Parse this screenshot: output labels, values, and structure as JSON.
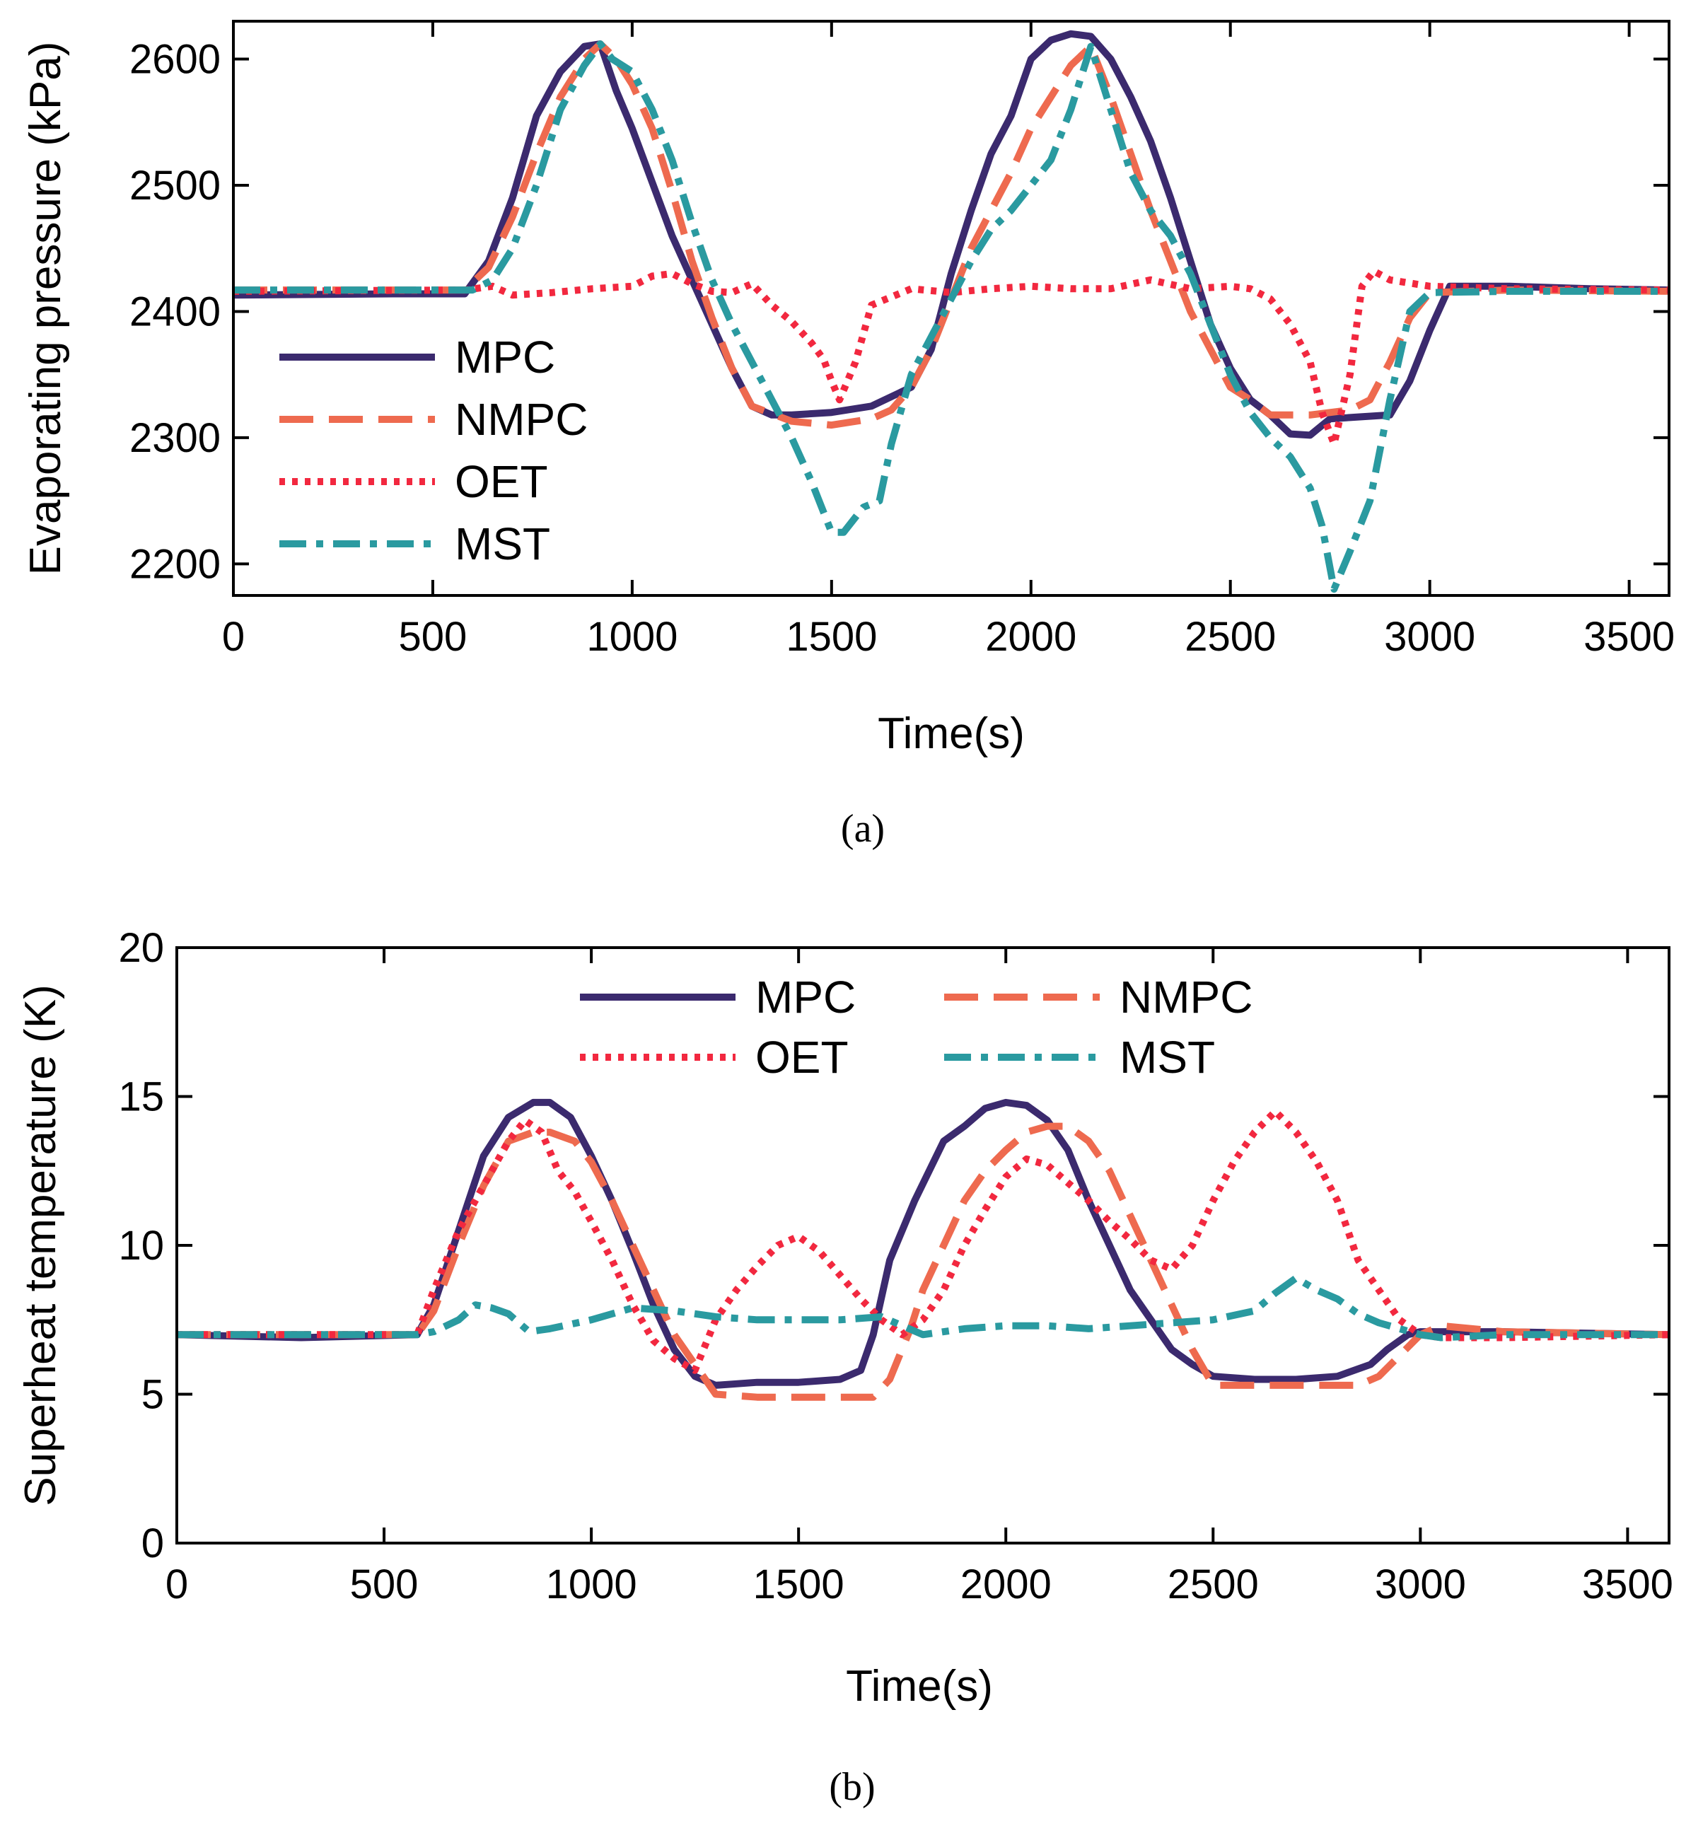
{
  "colors": {
    "MPC": "#3b2a6e",
    "NMPC": "#ee6a4f",
    "OET": "#f2283f",
    "MST": "#2a9aa0",
    "axis": "#000000",
    "background": "#ffffff"
  },
  "chart_data": [
    {
      "type": "line",
      "panel_label": "(a)",
      "xlabel": "Time(s)",
      "ylabel": "Evaporating pressure (kPa)",
      "xlim": [
        0,
        3600
      ],
      "ylim": [
        2175,
        2630
      ],
      "xticks": [
        0,
        500,
        1000,
        1500,
        2000,
        2500,
        3000,
        3500
      ],
      "yticks": [
        2200,
        2300,
        2400,
        2500,
        2600
      ],
      "grid": false,
      "legend_placement": "left-center",
      "legend_columns": 1,
      "series": [
        {
          "name": "MPC",
          "style": "solid",
          "color_key": "MPC",
          "x": [
            0,
            400,
            580,
            640,
            700,
            760,
            820,
            880,
            920,
            960,
            1000,
            1100,
            1200,
            1250,
            1300,
            1350,
            1400,
            1500,
            1600,
            1700,
            1750,
            1800,
            1850,
            1900,
            1950,
            2000,
            2050,
            2100,
            2150,
            2200,
            2250,
            2300,
            2350,
            2400,
            2450,
            2500,
            2550,
            2600,
            2650,
            2700,
            2750,
            2800,
            2900,
            2950,
            3000,
            3050,
            3200,
            3400,
            3600
          ],
          "y": [
            2413,
            2414,
            2414,
            2440,
            2490,
            2555,
            2590,
            2610,
            2612,
            2575,
            2545,
            2460,
            2390,
            2355,
            2325,
            2318,
            2318,
            2320,
            2325,
            2340,
            2370,
            2430,
            2480,
            2525,
            2555,
            2600,
            2615,
            2620,
            2618,
            2600,
            2570,
            2535,
            2490,
            2440,
            2390,
            2355,
            2330,
            2318,
            2303,
            2302,
            2315,
            2316,
            2318,
            2345,
            2385,
            2420,
            2420,
            2418,
            2417
          ]
        },
        {
          "name": "NMPC",
          "style": "dashed",
          "color_key": "NMPC",
          "x": [
            0,
            580,
            640,
            700,
            760,
            820,
            880,
            920,
            960,
            1000,
            1050,
            1100,
            1150,
            1200,
            1250,
            1300,
            1400,
            1500,
            1600,
            1650,
            1700,
            1750,
            1800,
            1850,
            1900,
            1950,
            2000,
            2050,
            2100,
            2150,
            2200,
            2250,
            2300,
            2350,
            2400,
            2450,
            2500,
            2550,
            2600,
            2700,
            2800,
            2850,
            2900,
            2950,
            3000,
            3200,
            3600
          ],
          "y": [
            2417,
            2417,
            2435,
            2475,
            2525,
            2570,
            2600,
            2612,
            2600,
            2580,
            2545,
            2495,
            2440,
            2395,
            2355,
            2325,
            2313,
            2310,
            2315,
            2322,
            2340,
            2370,
            2410,
            2450,
            2480,
            2510,
            2545,
            2570,
            2595,
            2610,
            2570,
            2525,
            2480,
            2440,
            2400,
            2370,
            2340,
            2330,
            2318,
            2318,
            2322,
            2330,
            2360,
            2395,
            2415,
            2417,
            2416
          ]
        },
        {
          "name": "OET",
          "style": "dotted",
          "color_key": "OET",
          "x": [
            0,
            580,
            650,
            700,
            800,
            900,
            1000,
            1050,
            1100,
            1150,
            1200,
            1250,
            1300,
            1350,
            1400,
            1450,
            1480,
            1500,
            1520,
            1560,
            1600,
            1700,
            1800,
            1900,
            2000,
            2100,
            2200,
            2300,
            2400,
            2500,
            2550,
            2600,
            2650,
            2700,
            2730,
            2760,
            2800,
            2830,
            2860,
            2900,
            3000,
            3200,
            3600
          ],
          "y": [
            2416,
            2417,
            2420,
            2413,
            2415,
            2418,
            2420,
            2428,
            2430,
            2422,
            2416,
            2415,
            2422,
            2405,
            2392,
            2375,
            2362,
            2345,
            2330,
            2360,
            2405,
            2418,
            2415,
            2418,
            2420,
            2418,
            2418,
            2425,
            2418,
            2420,
            2418,
            2410,
            2390,
            2360,
            2320,
            2295,
            2350,
            2420,
            2432,
            2425,
            2420,
            2418,
            2417
          ]
        },
        {
          "name": "MST",
          "style": "dashdot",
          "color_key": "MST",
          "x": [
            0,
            600,
            650,
            700,
            760,
            820,
            880,
            920,
            950,
            1000,
            1050,
            1100,
            1150,
            1200,
            1250,
            1300,
            1350,
            1400,
            1450,
            1500,
            1530,
            1580,
            1620,
            1650,
            1700,
            1750,
            1800,
            1850,
            1900,
            1950,
            2000,
            2050,
            2100,
            2150,
            2200,
            2250,
            2300,
            2350,
            2400,
            2450,
            2500,
            2550,
            2600,
            2650,
            2700,
            2730,
            2760,
            2800,
            2850,
            2900,
            2950,
            3000,
            3200,
            3600
          ],
          "y": [
            2417,
            2417,
            2425,
            2450,
            2500,
            2560,
            2595,
            2612,
            2600,
            2590,
            2560,
            2520,
            2470,
            2425,
            2390,
            2360,
            2330,
            2300,
            2265,
            2225,
            2225,
            2245,
            2250,
            2295,
            2350,
            2380,
            2410,
            2440,
            2465,
            2480,
            2500,
            2520,
            2560,
            2610,
            2560,
            2510,
            2480,
            2460,
            2430,
            2390,
            2350,
            2320,
            2300,
            2285,
            2260,
            2230,
            2180,
            2210,
            2250,
            2330,
            2400,
            2415,
            2416,
            2416
          ]
        }
      ]
    },
    {
      "type": "line",
      "panel_label": "(b)",
      "xlabel": "Time(s)",
      "ylabel": "Superheat temperature (K)",
      "xlim": [
        0,
        3600
      ],
      "ylim": [
        0,
        20
      ],
      "xticks": [
        0,
        500,
        1000,
        1500,
        2000,
        2500,
        3000,
        3500
      ],
      "yticks": [
        0,
        5,
        10,
        15,
        20
      ],
      "grid": false,
      "legend_placement": "top-center",
      "legend_columns": 2,
      "series": [
        {
          "name": "MPC",
          "style": "solid",
          "color_key": "MPC",
          "x": [
            0,
            300,
            580,
            620,
            680,
            740,
            800,
            860,
            900,
            950,
            1000,
            1050,
            1100,
            1150,
            1200,
            1250,
            1300,
            1400,
            1500,
            1600,
            1650,
            1680,
            1720,
            1780,
            1850,
            1900,
            1950,
            2000,
            2050,
            2100,
            2150,
            2200,
            2250,
            2300,
            2350,
            2400,
            2450,
            2500,
            2600,
            2700,
            2800,
            2880,
            2920,
            2970,
            3000,
            3200,
            3600
          ],
          "y": [
            7,
            6.9,
            7,
            8,
            10.5,
            13,
            14.3,
            14.8,
            14.8,
            14.3,
            13,
            11.5,
            9.8,
            8,
            6.5,
            5.6,
            5.3,
            5.4,
            5.4,
            5.5,
            5.8,
            7,
            9.5,
            11.5,
            13.5,
            14,
            14.6,
            14.8,
            14.7,
            14.2,
            13.2,
            11.5,
            10,
            8.5,
            7.5,
            6.5,
            6,
            5.6,
            5.5,
            5.5,
            5.6,
            6,
            6.5,
            7,
            7.1,
            7.1,
            7
          ]
        },
        {
          "name": "NMPC",
          "style": "dashed",
          "color_key": "NMPC",
          "x": [
            0,
            580,
            620,
            680,
            740,
            800,
            860,
            900,
            960,
            1000,
            1050,
            1100,
            1150,
            1200,
            1250,
            1300,
            1400,
            1500,
            1600,
            1680,
            1720,
            1770,
            1800,
            1850,
            1900,
            1950,
            2000,
            2050,
            2100,
            2150,
            2200,
            2250,
            2300,
            2350,
            2400,
            2450,
            2500,
            2600,
            2700,
            2850,
            2900,
            2950,
            3000,
            3050,
            3200,
            3600
          ],
          "y": [
            7,
            7,
            7.8,
            10,
            12,
            13.5,
            13.8,
            13.8,
            13.5,
            12.8,
            11.5,
            10,
            8.5,
            7,
            6,
            5,
            4.9,
            4.9,
            4.9,
            4.9,
            5.5,
            7.2,
            8.5,
            10,
            11.5,
            12.5,
            13.2,
            13.8,
            14,
            14,
            13.5,
            12.5,
            11,
            9.5,
            8,
            6.5,
            5.3,
            5.3,
            5.3,
            5.3,
            5.6,
            6.3,
            7,
            7.3,
            7.1,
            7
          ]
        },
        {
          "name": "OET",
          "style": "dotted",
          "color_key": "OET",
          "x": [
            0,
            580,
            620,
            680,
            740,
            800,
            840,
            880,
            920,
            960,
            1000,
            1050,
            1100,
            1150,
            1200,
            1250,
            1300,
            1350,
            1400,
            1450,
            1500,
            1550,
            1600,
            1650,
            1700,
            1750,
            1800,
            1850,
            1900,
            1950,
            2000,
            2050,
            2100,
            2150,
            2200,
            2250,
            2300,
            2350,
            2400,
            2450,
            2500,
            2550,
            2600,
            2650,
            2700,
            2750,
            2800,
            2850,
            2900,
            2950,
            3000,
            3050,
            3200,
            3600
          ],
          "y": [
            7,
            7,
            8.5,
            10.5,
            12,
            13.5,
            14.2,
            13.8,
            12.5,
            11.8,
            10.8,
            9.5,
            8,
            6.8,
            6.2,
            5.8,
            7.5,
            8.5,
            9.3,
            10,
            10.3,
            9.8,
            9,
            8.2,
            7.5,
            7,
            7.5,
            8.5,
            10,
            11.2,
            12.3,
            12.9,
            12.7,
            12.1,
            11.5,
            10.8,
            10.2,
            9.5,
            9.2,
            10,
            11.5,
            12.8,
            13.8,
            14.5,
            13.8,
            12.8,
            11.5,
            9.5,
            8.5,
            7.5,
            7,
            6.9,
            6.9,
            7
          ]
        },
        {
          "name": "MST",
          "style": "dashdot",
          "color_key": "MST",
          "x": [
            0,
            580,
            620,
            680,
            720,
            760,
            800,
            850,
            900,
            1000,
            1100,
            1200,
            1300,
            1400,
            1500,
            1600,
            1700,
            1800,
            1900,
            2000,
            2100,
            2200,
            2300,
            2400,
            2500,
            2600,
            2650,
            2700,
            2750,
            2800,
            2850,
            2900,
            2950,
            3000,
            3050,
            3200,
            3600
          ],
          "y": [
            7,
            7,
            7.1,
            7.5,
            8,
            7.9,
            7.7,
            7.1,
            7.2,
            7.5,
            7.9,
            7.8,
            7.6,
            7.5,
            7.5,
            7.5,
            7.6,
            7,
            7.2,
            7.3,
            7.3,
            7.2,
            7.3,
            7.4,
            7.5,
            7.8,
            8.4,
            8.9,
            8.5,
            8.2,
            7.7,
            7.4,
            7.2,
            7.0,
            6.9,
            7,
            7
          ]
        }
      ]
    }
  ]
}
